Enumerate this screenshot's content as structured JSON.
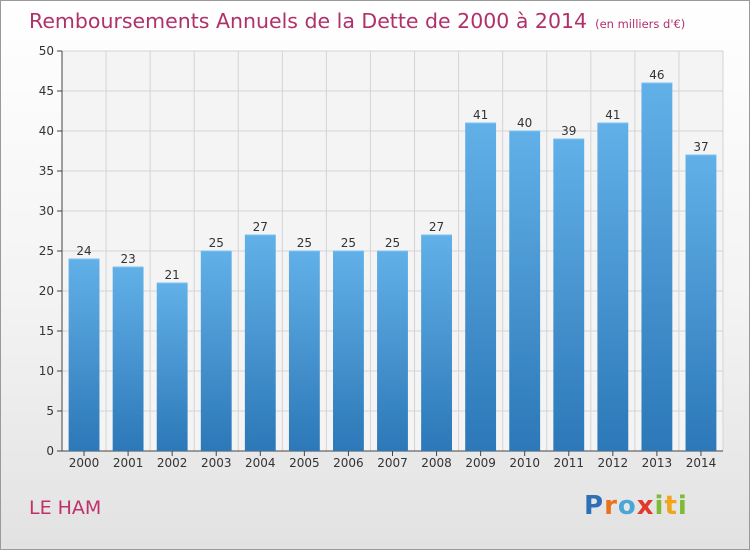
{
  "chart_data": {
    "type": "bar",
    "title": "Remboursements Annuels de la Dette de 2000 à 2014",
    "unit": "(en milliers d'€)",
    "categories": [
      "2000",
      "2001",
      "2002",
      "2003",
      "2004",
      "2005",
      "2006",
      "2007",
      "2008",
      "2009",
      "2010",
      "2011",
      "2012",
      "2013",
      "2014"
    ],
    "values": [
      24,
      23,
      21,
      25,
      27,
      25,
      25,
      25,
      27,
      41,
      40,
      39,
      41,
      46,
      37
    ],
    "ylim": [
      0,
      50
    ],
    "yticks": [
      0,
      5,
      10,
      15,
      20,
      25,
      30,
      35,
      40,
      45,
      50
    ],
    "grid": true,
    "xlabel": "",
    "ylabel": ""
  },
  "commune": "LE HAM",
  "logo": {
    "text": "Proxiti",
    "colors": [
      "#2f6fb8",
      "#e8731c",
      "#4aa6d6",
      "#e23a2a",
      "#7dbb35",
      "#f0a51c",
      "#7dbb35"
    ]
  },
  "colors": {
    "title": "#b0306a",
    "bar_top": "#62b0e8",
    "bar_bottom": "#2c78b8"
  }
}
